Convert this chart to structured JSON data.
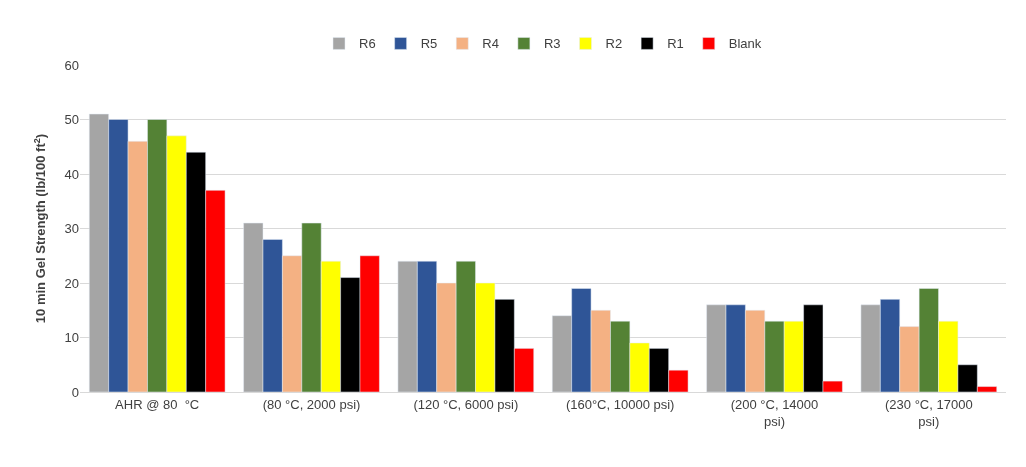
{
  "chart_data": {
    "type": "bar",
    "ylabel": "10 min Gel Strength (lb/100 ft$^{2}$)",
    "categories": [
      "AHR @ 80  °C",
      "(80 °C, 2000 psi)",
      "(120 °C, 6000 psi)",
      "(160°C, 10000 psi)",
      "(200 °C, 14000 psi)",
      "(230 °C, 17000 psi)"
    ],
    "series": [
      {
        "name": "R6",
        "color": "#a5a5a5",
        "values": [
          51,
          31,
          24,
          14,
          16,
          16
        ]
      },
      {
        "name": "R5",
        "color": "#2f5597",
        "values": [
          50,
          28,
          24,
          19,
          16,
          17
        ]
      },
      {
        "name": "R4",
        "color": "#f4b183",
        "values": [
          46,
          25,
          20,
          15,
          15,
          12
        ]
      },
      {
        "name": "R3",
        "color": "#548235",
        "values": [
          50,
          31,
          24,
          13,
          13,
          19
        ]
      },
      {
        "name": "R2",
        "color": "#ffff00",
        "values": [
          47,
          24,
          20,
          9,
          13,
          13
        ]
      },
      {
        "name": "R1",
        "color": "#000000",
        "values": [
          44,
          21,
          17,
          8,
          16,
          5
        ]
      },
      {
        "name": "Blank",
        "color": "#ff0000",
        "values": [
          37,
          25,
          8,
          4,
          2,
          1
        ]
      }
    ],
    "ylim": [
      0,
      60
    ],
    "yticks": [
      0,
      10,
      20,
      30,
      40,
      50,
      60
    ],
    "grid": "y",
    "legend": "top"
  }
}
